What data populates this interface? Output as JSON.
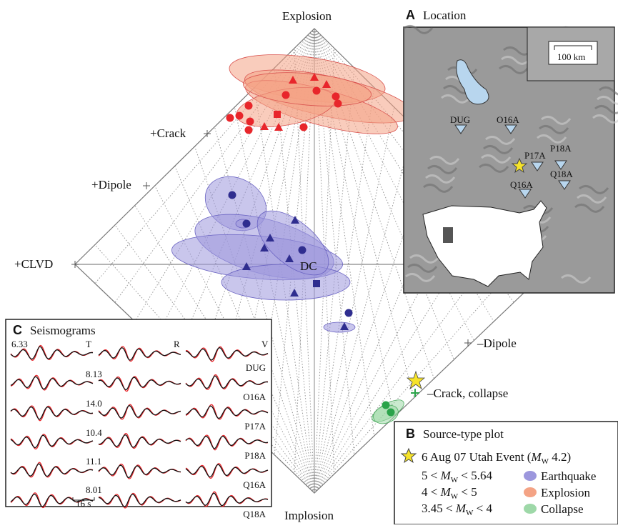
{
  "lune": {
    "explosion": "Explosion",
    "implosion": "Implosion",
    "crack": "+Crack",
    "dipole": "+Dipole",
    "clvd": "+CLVD",
    "dc": "DC",
    "neg_dipole": "–Dipole",
    "neg_crack": "–Crack, collapse"
  },
  "panel_a": {
    "letter": "A",
    "title": "Location",
    "scale": "100 km",
    "stations": [
      "DUG",
      "O16A",
      "P17A",
      "P18A",
      "Q18A",
      "Q16A"
    ]
  },
  "panel_b": {
    "letter": "B",
    "title": "Source-type plot",
    "event": {
      "pre": "6 Aug 07 Utah Event (",
      "m": "M",
      "sub": "W",
      "post": " 4.2)"
    },
    "sizes": [
      {
        "pre": "5 < ",
        "m": "M",
        "sub": "W",
        "post": " < 5.64"
      },
      {
        "pre": "4 < ",
        "m": "M",
        "sub": "W",
        "post": " < 5"
      },
      {
        "pre": "3.45 < ",
        "m": "M",
        "sub": "W",
        "post": " < 4"
      }
    ],
    "classes": [
      "Earthquake",
      "Explosion",
      "Collapse"
    ]
  },
  "panel_c": {
    "letter": "C",
    "title": "Seismograms",
    "components": [
      "T",
      "R",
      "V"
    ],
    "amplitudes": [
      "6.33",
      "8.13",
      "14.0",
      "10.4",
      "11.1",
      "8.01"
    ],
    "stations": [
      "DUG",
      "O16A",
      "P17A",
      "P18A",
      "Q16A",
      "Q18A"
    ],
    "timescale": "16 s"
  }
}
